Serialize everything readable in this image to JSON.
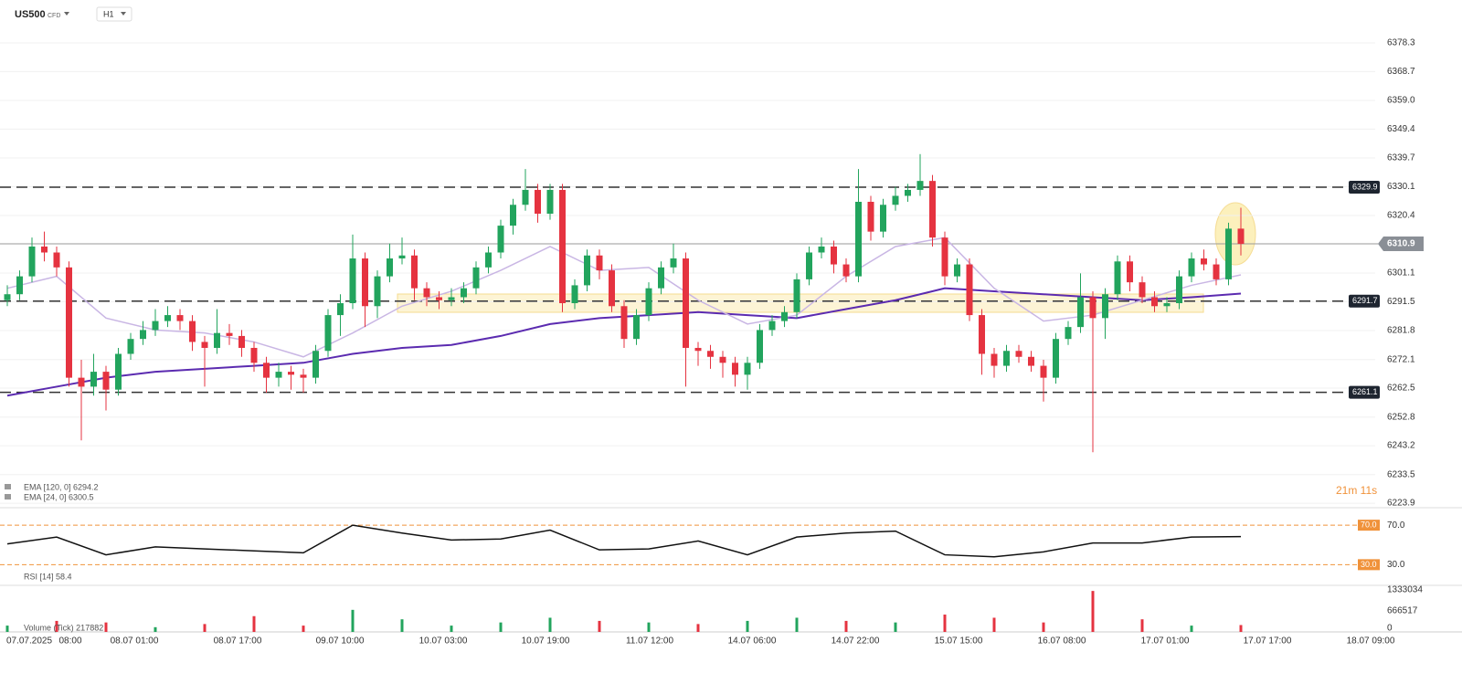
{
  "header": {
    "symbol": "US500",
    "instrument_type": "CFD",
    "timeframe": "H1"
  },
  "chart_data": [
    {
      "type": "candlestick",
      "up_color": "#22a45d",
      "down_color": "#e53340",
      "ohlc": [
        [
          6292,
          6297,
          6290,
          6294
        ],
        [
          6294,
          6302,
          6292,
          6300
        ],
        [
          6300,
          6313,
          6298,
          6310
        ],
        [
          6310,
          6315,
          6305,
          6308
        ],
        [
          6308,
          6310,
          6300,
          6303
        ],
        [
          6303,
          6305,
          6263,
          6266
        ],
        [
          6266,
          6272,
          6245,
          6263
        ],
        [
          6263,
          6274,
          6260,
          6268
        ],
        [
          6268,
          6270,
          6255,
          6262
        ],
        [
          6262,
          6276,
          6260,
          6274
        ],
        [
          6274,
          6281,
          6272,
          6279
        ],
        [
          6279,
          6285,
          6277,
          6282
        ],
        [
          6282,
          6289,
          6280,
          6285
        ],
        [
          6285,
          6290,
          6283,
          6287
        ],
        [
          6287,
          6289,
          6282,
          6285
        ],
        [
          6285,
          6287,
          6275,
          6278
        ],
        [
          6278,
          6280,
          6263,
          6276
        ],
        [
          6276,
          6289,
          6274,
          6281
        ],
        [
          6281,
          6284,
          6277,
          6280
        ],
        [
          6280,
          6282,
          6273,
          6276
        ],
        [
          6276,
          6278,
          6268,
          6271
        ],
        [
          6271,
          6273,
          6261,
          6266
        ],
        [
          6266,
          6271,
          6263,
          6268
        ],
        [
          6268,
          6270,
          6262,
          6267
        ],
        [
          6267,
          6269,
          6261,
          6266
        ],
        [
          6266,
          6277,
          6264,
          6275
        ],
        [
          6275,
          6289,
          6273,
          6287
        ],
        [
          6287,
          6294,
          6280,
          6291
        ],
        [
          6291,
          6314,
          6289,
          6306
        ],
        [
          6306,
          6308,
          6283,
          6290
        ],
        [
          6290,
          6302,
          6286,
          6300
        ],
        [
          6300,
          6311,
          6298,
          6306
        ],
        [
          6306,
          6313,
          6304,
          6307
        ],
        [
          6307,
          6309,
          6292,
          6296
        ],
        [
          6296,
          6298,
          6290,
          6293
        ],
        [
          6293,
          6295,
          6289,
          6292
        ],
        [
          6292,
          6296,
          6290,
          6293
        ],
        [
          6293,
          6298,
          6291,
          6296
        ],
        [
          6296,
          6305,
          6294,
          6303
        ],
        [
          6303,
          6310,
          6301,
          6308
        ],
        [
          6308,
          6319,
          6306,
          6317
        ],
        [
          6317,
          6326,
          6314,
          6324
        ],
        [
          6324,
          6336,
          6322,
          6329
        ],
        [
          6329,
          6331,
          6318,
          6321
        ],
        [
          6321,
          6331,
          6319,
          6329
        ],
        [
          6329,
          6331,
          6288,
          6291
        ],
        [
          6291,
          6299,
          6289,
          6297
        ],
        [
          6297,
          6309,
          6295,
          6307
        ],
        [
          6307,
          6309,
          6299,
          6302
        ],
        [
          6302,
          6304,
          6288,
          6290
        ],
        [
          6290,
          6292,
          6276,
          6279
        ],
        [
          6279,
          6289,
          6277,
          6287
        ],
        [
          6287,
          6298,
          6285,
          6296
        ],
        [
          6296,
          6305,
          6294,
          6303
        ],
        [
          6303,
          6311,
          6301,
          6306
        ],
        [
          6306,
          6308,
          6263,
          6276
        ],
        [
          6276,
          6278,
          6270,
          6275
        ],
        [
          6275,
          6277,
          6269,
          6273
        ],
        [
          6273,
          6275,
          6266,
          6271
        ],
        [
          6271,
          6273,
          6263,
          6267
        ],
        [
          6267,
          6273,
          6262,
          6271
        ],
        [
          6271,
          6284,
          6269,
          6282
        ],
        [
          6282,
          6287,
          6280,
          6285
        ],
        [
          6285,
          6290,
          6283,
          6288
        ],
        [
          6288,
          6301,
          6286,
          6299
        ],
        [
          6299,
          6310,
          6297,
          6308
        ],
        [
          6308,
          6313,
          6306,
          6310
        ],
        [
          6310,
          6312,
          6301,
          6304
        ],
        [
          6304,
          6306,
          6298,
          6300
        ],
        [
          6300,
          6336,
          6298,
          6325
        ],
        [
          6325,
          6327,
          6312,
          6315
        ],
        [
          6315,
          6326,
          6313,
          6324
        ],
        [
          6324,
          6330,
          6322,
          6327
        ],
        [
          6327,
          6331,
          6325,
          6329
        ],
        [
          6329,
          6341,
          6327,
          6332
        ],
        [
          6332,
          6334,
          6310,
          6313
        ],
        [
          6313,
          6315,
          6297,
          6300
        ],
        [
          6300,
          6306,
          6298,
          6304
        ],
        [
          6304,
          6306,
          6285,
          6287
        ],
        [
          6287,
          6289,
          6267,
          6274
        ],
        [
          6274,
          6276,
          6266,
          6270
        ],
        [
          6270,
          6277,
          6268,
          6275
        ],
        [
          6275,
          6277,
          6271,
          6273
        ],
        [
          6273,
          6275,
          6268,
          6270
        ],
        [
          6270,
          6272,
          6258,
          6266
        ],
        [
          6266,
          6281,
          6264,
          6279
        ],
        [
          6279,
          6285,
          6277,
          6283
        ],
        [
          6283,
          6301,
          6281,
          6293
        ],
        [
          6293,
          6295,
          6241,
          6286
        ],
        [
          6286,
          6296,
          6279,
          6294
        ],
        [
          6294,
          6307,
          6292,
          6305
        ],
        [
          6305,
          6307,
          6295,
          6298
        ],
        [
          6298,
          6300,
          6291,
          6293
        ],
        [
          6293,
          6295,
          6288,
          6290
        ],
        [
          6290,
          6293,
          6288,
          6291
        ],
        [
          6291,
          6302,
          6289,
          6300
        ],
        [
          6300,
          6308,
          6298,
          6306
        ],
        [
          6306,
          6309,
          6302,
          6304
        ],
        [
          6304,
          6306,
          6297,
          6299
        ],
        [
          6299,
          6318,
          6297,
          6316
        ],
        [
          6316,
          6323,
          6307,
          6310.9
        ]
      ],
      "ylim": [
        6222.7,
        6383.5
      ],
      "yticks": [
        6378.3,
        6368.7,
        {
          "value": 6359,
          "label": "6359.0"
        },
        6349.4,
        6339.7,
        6330.1,
        6320.4,
        6301.1,
        6291.5,
        6281.8,
        6272.1,
        6262.5,
        6252.8,
        6243.2,
        6233.5,
        6223.9
      ],
      "levels": [
        6329.9,
        6291.7,
        6261.1
      ],
      "current_price": 6310.9,
      "lines": [
        {
          "name": "EMA [120, 0] 6294.2",
          "color": "#5b2bb0",
          "x": [
            0,
            4,
            8,
            12,
            16,
            20,
            24,
            28,
            32,
            36,
            40,
            44,
            48,
            52,
            56,
            60,
            64,
            68,
            72,
            76,
            80,
            84,
            88,
            92,
            96,
            100
          ],
          "values": [
            6260,
            6263,
            6266,
            6268,
            6269,
            6270,
            6271,
            6274,
            6276,
            6277,
            6280,
            6284,
            6286,
            6287,
            6288,
            6287,
            6286,
            6289,
            6292,
            6296,
            6295,
            6294,
            6293,
            6292,
            6293,
            6294.2
          ]
        },
        {
          "name": "EMA [24, 0] 6300.5",
          "color": "#c9b6e4",
          "x": [
            0,
            4,
            8,
            12,
            16,
            20,
            24,
            28,
            32,
            36,
            40,
            44,
            48,
            52,
            56,
            60,
            64,
            68,
            72,
            76,
            80,
            84,
            88,
            92,
            96,
            100
          ],
          "values": [
            6296,
            6300,
            6286,
            6282,
            6281,
            6278,
            6273,
            6281,
            6290,
            6295,
            6302,
            6310,
            6302,
            6303,
            6292,
            6284,
            6287,
            6300,
            6310,
            6313,
            6296,
            6285,
            6287,
            6292,
            6297,
            6300.5
          ]
        }
      ],
      "xtick_labels": [
        "07.07.2025",
        "08:00",
        "08.07 01:00",
        "08.07 17:00",
        "09.07 10:00",
        "10.07 03:00",
        "10.07 19:00",
        "11.07 12:00",
        "14.07 06:00",
        "14.07 22:00",
        "15.07 15:00",
        "16.07 08:00",
        "17.07 01:00",
        "17.07 17:00",
        "18.07 09:00"
      ],
      "countdown": "21m 11s"
    },
    {
      "type": "line",
      "name": "RSI [14] 58.4",
      "color": "#111111",
      "x": [
        0,
        4,
        8,
        12,
        16,
        20,
        24,
        28,
        32,
        36,
        40,
        44,
        48,
        52,
        56,
        60,
        64,
        68,
        72,
        76,
        80,
        84,
        88,
        92,
        96,
        100
      ],
      "values": [
        51,
        58,
        40,
        48,
        46,
        44,
        42,
        70,
        62,
        55,
        56,
        65,
        45,
        46,
        54,
        40,
        58,
        62,
        64,
        40,
        38,
        43,
        52,
        52,
        58,
        58.4
      ],
      "ylim": [
        10,
        84
      ],
      "yticks": [
        {
          "value": 70,
          "label": "70.0"
        },
        {
          "value": 30,
          "label": "30.0"
        }
      ],
      "guide_color": "#f0923a"
    },
    {
      "type": "bar",
      "name": "Volume (Tick) 217882",
      "x": [
        0,
        4,
        8,
        12,
        16,
        20,
        24,
        28,
        32,
        36,
        40,
        44,
        48,
        52,
        56,
        60,
        64,
        68,
        72,
        76,
        80,
        84,
        88,
        92,
        96,
        100
      ],
      "values": [
        200000,
        350000,
        300000,
        150000,
        250000,
        500000,
        200000,
        700000,
        400000,
        200000,
        300000,
        450000,
        350000,
        300000,
        250000,
        350000,
        450000,
        350000,
        300000,
        550000,
        450000,
        300000,
        1300000,
        400000,
        200000,
        217882
      ],
      "ylim": [
        0,
        1333034
      ],
      "yticks": [
        1333034,
        666517,
        0
      ]
    }
  ]
}
